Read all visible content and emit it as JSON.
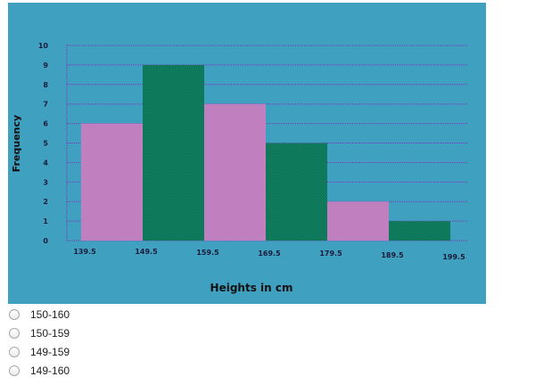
{
  "chart_data": {
    "type": "bar",
    "subtype": "histogram",
    "title": "",
    "xlabel": "Heights in cm",
    "ylabel": "Frequency",
    "bin_edges": [
      "139.5",
      "149.5",
      "159.5",
      "169.5",
      "179.5",
      "189.5",
      "199.5"
    ],
    "values": [
      6,
      9,
      7,
      5,
      2,
      1
    ],
    "y_ticks": [
      0,
      1,
      2,
      3,
      4,
      5,
      6,
      7,
      8,
      9,
      10
    ],
    "ylim": [
      0,
      10
    ],
    "grid": true,
    "colors": {
      "background": "#40a0c0",
      "bar_pink": "#c080c0",
      "bar_green": "#108060",
      "grid": "#8030c0"
    }
  },
  "answer_options": [
    {
      "label": "150-160"
    },
    {
      "label": "150-159"
    },
    {
      "label": "149-159"
    },
    {
      "label": "149-160"
    }
  ]
}
